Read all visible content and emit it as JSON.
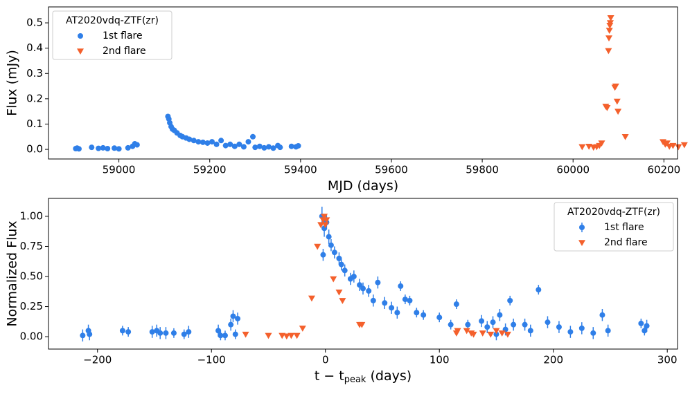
{
  "chart_data": [
    {
      "type": "scatter",
      "xlabel": [
        "MJD (days)"
      ],
      "ylabel": "Flux (mJy)",
      "xlim": [
        58845,
        60230
      ],
      "ylim": [
        -0.038,
        0.563
      ],
      "xticks": [
        59000,
        59200,
        59400,
        59600,
        59800,
        60000,
        60200
      ],
      "yticks": [
        {
          "value": 0,
          "label": "0.0"
        },
        0.1,
        0.2,
        0.3,
        0.4,
        0.5
      ],
      "legend": {
        "title": "AT2020vdq-ZTF(zr)",
        "loc": "upper left"
      },
      "series": [
        {
          "name": "1st flare",
          "color": "#2f7fe8",
          "marker": "circle",
          "x": [
            58905,
            58908,
            58912,
            58940,
            58955,
            58965,
            58975,
            58990,
            59000,
            59020,
            59030,
            59035,
            59040,
            59108,
            59110,
            59112,
            59115,
            59118,
            59122,
            59128,
            59135,
            59140,
            59148,
            59155,
            59165,
            59175,
            59185,
            59195,
            59205,
            59215,
            59225,
            59235,
            59245,
            59255,
            59265,
            59275,
            59285,
            59295,
            59300,
            59310,
            59320,
            59330,
            59340,
            59350,
            59355,
            59380,
            59390,
            59395
          ],
          "values": [
            0.003,
            0.005,
            0.002,
            0.008,
            0.004,
            0.006,
            0.003,
            0.005,
            0.002,
            0.006,
            0.012,
            0.022,
            0.018,
            0.13,
            0.12,
            0.105,
            0.09,
            0.08,
            0.075,
            0.065,
            0.055,
            0.05,
            0.045,
            0.04,
            0.035,
            0.03,
            0.028,
            0.025,
            0.03,
            0.02,
            0.035,
            0.015,
            0.02,
            0.012,
            0.02,
            0.01,
            0.03,
            0.05,
            0.008,
            0.012,
            0.006,
            0.01,
            0.005,
            0.015,
            0.008,
            0.012,
            0.01,
            0.014
          ]
        },
        {
          "name": "2nd flare",
          "color": "#f4602c",
          "marker": "triangle",
          "x": [
            60020,
            60035,
            60045,
            60052,
            60058,
            60063,
            60072,
            60075,
            60078,
            60079,
            60080,
            60081,
            60082,
            60083,
            60092,
            60094,
            60097,
            60099,
            60115,
            60198,
            60203,
            60207,
            60212,
            60220,
            60232,
            60245
          ],
          "values": [
            0.01,
            0.012,
            0.008,
            0.01,
            0.015,
            0.025,
            0.17,
            0.165,
            0.39,
            0.44,
            0.47,
            0.49,
            0.5,
            0.52,
            0.245,
            0.25,
            0.19,
            0.15,
            0.05,
            0.03,
            0.02,
            0.025,
            0.012,
            0.015,
            0.01,
            0.018
          ]
        }
      ]
    },
    {
      "type": "scatter",
      "xlabel": [
        "t − t",
        "peak",
        " (days)"
      ],
      "ylabel": "Normalized Flux",
      "xlim": [
        -243,
        309
      ],
      "ylim": [
        -0.103,
        1.149
      ],
      "xticks": [
        {
          "value": -200,
          "label": "−200"
        },
        {
          "value": -100,
          "label": "−100"
        },
        0,
        100,
        200,
        300
      ],
      "yticks": [
        {
          "value": 0,
          "label": "0.00"
        },
        0.25,
        {
          "value": 0.5,
          "label": "0.50"
        },
        0.75,
        {
          "value": 1,
          "label": "1.00"
        }
      ],
      "legend": {
        "title": "AT2020vdq-ZTF(zr)",
        "loc": "upper right"
      },
      "series": [
        {
          "name": "1st flare",
          "color": "#2f7fe8",
          "marker": "circle",
          "x": [
            -213,
            -208,
            -207,
            -178,
            -173,
            -152,
            -148,
            -145,
            -140,
            -133,
            -124,
            -120,
            -94,
            -92,
            -88,
            -83,
            -81,
            -79,
            -77,
            -3,
            -2,
            -1,
            1,
            3,
            5,
            8,
            12,
            14,
            17,
            22,
            25,
            30,
            33,
            38,
            42,
            46,
            52,
            58,
            63,
            66,
            70,
            74,
            80,
            86,
            100,
            110,
            115,
            125,
            137,
            142,
            147,
            150,
            153,
            158,
            162,
            165,
            175,
            180,
            187,
            195,
            205,
            215,
            225,
            235,
            243,
            248,
            277,
            280,
            282
          ],
          "values": [
            0.01,
            0.05,
            0.02,
            0.05,
            0.04,
            0.04,
            0.05,
            0.03,
            0.03,
            0.03,
            0.02,
            0.04,
            0.05,
            0.01,
            0.01,
            0.1,
            0.17,
            0.02,
            0.15,
            1.0,
            0.68,
            0.9,
            0.95,
            0.83,
            0.76,
            0.7,
            0.65,
            0.6,
            0.55,
            0.48,
            0.5,
            0.43,
            0.4,
            0.38,
            0.3,
            0.45,
            0.28,
            0.24,
            0.2,
            0.42,
            0.31,
            0.3,
            0.2,
            0.18,
            0.16,
            0.1,
            0.27,
            0.1,
            0.13,
            0.08,
            0.12,
            0.02,
            0.18,
            0.06,
            0.3,
            0.1,
            0.1,
            0.05,
            0.39,
            0.12,
            0.08,
            0.04,
            0.07,
            0.03,
            0.18,
            0.05,
            0.11,
            0.05,
            0.09
          ],
          "errors": [
            0.05,
            0.05,
            0.05,
            0.04,
            0.04,
            0.05,
            0.05,
            0.05,
            0.05,
            0.04,
            0.04,
            0.05,
            0.05,
            0.04,
            0.04,
            0.05,
            0.05,
            0.04,
            0.05,
            0.08,
            0.05,
            0.07,
            0.06,
            0.06,
            0.05,
            0.05,
            0.05,
            0.05,
            0.05,
            0.05,
            0.05,
            0.05,
            0.05,
            0.05,
            0.05,
            0.05,
            0.05,
            0.05,
            0.05,
            0.04,
            0.04,
            0.04,
            0.04,
            0.04,
            0.04,
            0.04,
            0.04,
            0.04,
            0.05,
            0.05,
            0.05,
            0.05,
            0.05,
            0.05,
            0.04,
            0.05,
            0.05,
            0.05,
            0.04,
            0.05,
            0.05,
            0.05,
            0.05,
            0.05,
            0.05,
            0.05,
            0.04,
            0.04,
            0.05
          ]
        },
        {
          "name": "2nd flare",
          "color": "#f4602c",
          "marker": "triangle",
          "x": [
            -70,
            -50,
            -38,
            -34,
            -30,
            -25,
            -20,
            -12,
            -7,
            -4,
            -2,
            -1,
            0,
            1,
            7,
            12,
            15,
            30,
            32,
            115,
            116,
            124,
            128,
            130,
            138,
            145,
            150,
            155,
            160
          ],
          "values": [
            0.02,
            0.01,
            0.01,
            0.005,
            0.01,
            0.01,
            0.07,
            0.32,
            0.75,
            0.93,
            0.97,
            1.0,
            0.93,
            0.97,
            0.48,
            0.37,
            0.3,
            0.1,
            0.1,
            0.03,
            0.05,
            0.05,
            0.03,
            0.02,
            0.03,
            0.02,
            0.05,
            0.03,
            0.02
          ]
        }
      ]
    }
  ]
}
